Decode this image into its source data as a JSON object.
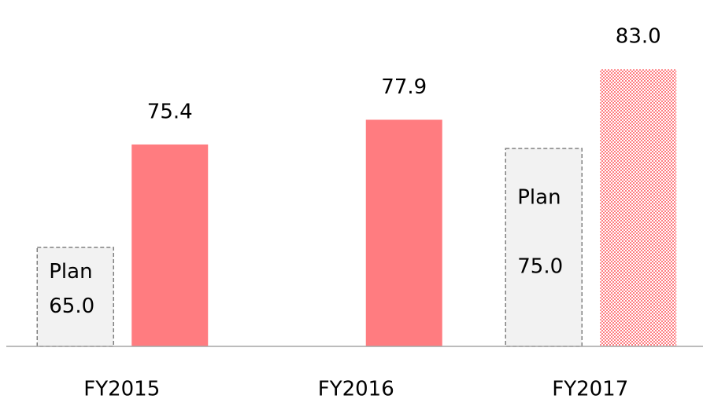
{
  "chart_data": {
    "type": "bar",
    "categories": [
      "FY2015",
      "FY2016",
      "FY2017"
    ],
    "series": [
      {
        "name": "Plan",
        "color": "#f2f2f2",
        "values": [
          65.0,
          null,
          75.0
        ],
        "value_labels": [
          "65.0",
          null,
          "75.0"
        ]
      },
      {
        "color": "#ff7c80",
        "values": [
          75.4,
          77.9,
          83.0
        ],
        "value_labels": [
          "75.4",
          "77.9",
          "83.0"
        ],
        "pattern": [
          false,
          false,
          true
        ]
      }
    ],
    "ylim": [
      55,
      90
    ]
  }
}
